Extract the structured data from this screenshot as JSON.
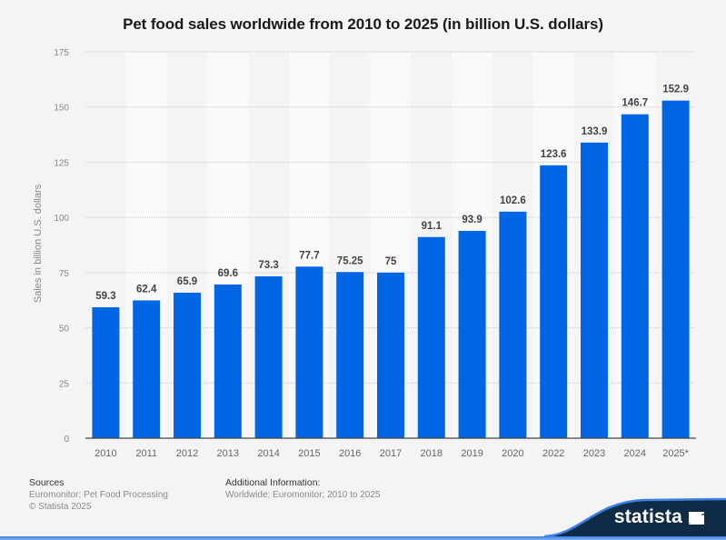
{
  "chart_data": {
    "type": "bar",
    "title": "Pet food sales worldwide from 2010 to 2025 (in billion U.S. dollars)",
    "xlabel": "",
    "ylabel": "Sales in billion U.S. dollars",
    "categories": [
      "2010",
      "2011",
      "2012",
      "2013",
      "2014",
      "2015",
      "2016",
      "2017",
      "2018",
      "2019",
      "2020",
      "2022",
      "2023",
      "2024",
      "2025*"
    ],
    "values": [
      59.3,
      62.4,
      65.9,
      69.6,
      73.3,
      77.7,
      75.25,
      75,
      91.1,
      93.9,
      102.6,
      123.6,
      133.9,
      146.7,
      152.9
    ],
    "value_labels": [
      "59.3",
      "62.4",
      "65.9",
      "69.6",
      "73.3",
      "77.7",
      "75.25",
      "75",
      "91.1",
      "93.9",
      "102.6",
      "123.6",
      "133.9",
      "146.7",
      "152.9"
    ],
    "ylim": [
      0,
      175
    ],
    "yticks": [
      0,
      25,
      50,
      75,
      100,
      125,
      150,
      175
    ],
    "grid": true,
    "legend": "none",
    "bar_color": "#0066e3"
  },
  "footer": {
    "sources_heading": "Sources",
    "sources_text": "Euromonitor; Pet Food Processing",
    "copyright": "© Statista 2025",
    "additional_heading": "Additional Information:",
    "additional_text": "Worldwide; Euromonitor; 2010 to 2025"
  },
  "brand": {
    "name": "statista",
    "icon": "statista-logo-icon",
    "badge_color": "#0f2b47",
    "accent_color": "#3b82e6"
  }
}
